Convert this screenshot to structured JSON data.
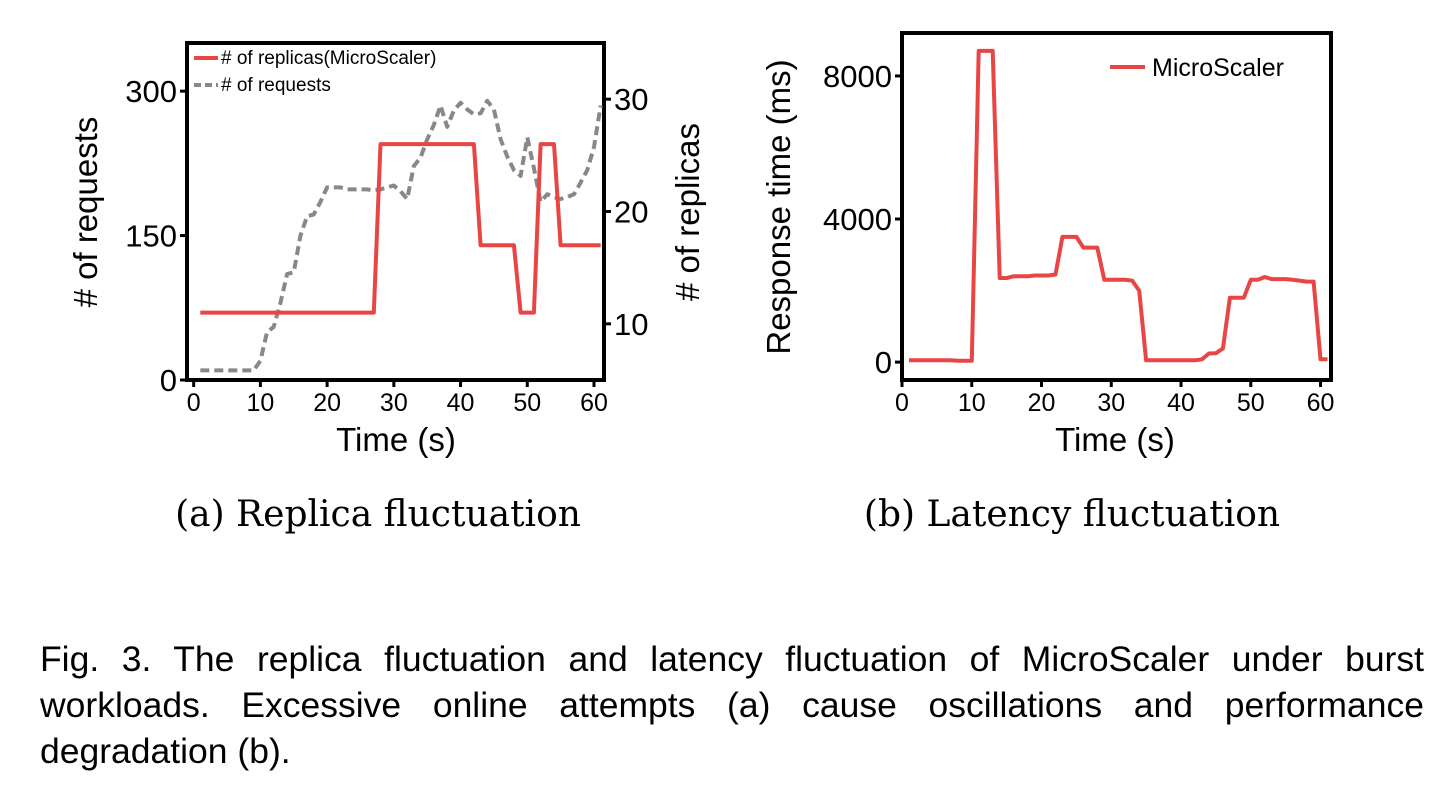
{
  "chart_data": [
    {
      "type": "line",
      "subcaption": "(a) Replica fluctuation",
      "xlabel": "Time (s)",
      "ylabel": "# of requests",
      "ylabel_right": "# of replicas",
      "xlim": [
        -1,
        61.5
      ],
      "ylim": [
        0,
        350
      ],
      "ylim_right": [
        5,
        35
      ],
      "xticks": [
        0,
        10,
        20,
        30,
        40,
        50,
        60
      ],
      "yticks": [
        0,
        150,
        300
      ],
      "yticks_right": [
        10,
        20,
        30
      ],
      "legend_position": "top-left",
      "series": [
        {
          "name": "# of replicas(MicroScaler)",
          "axis": "right",
          "color": "#e84545",
          "style": "solid",
          "x": [
            1,
            27,
            28,
            42,
            43,
            48,
            49,
            51,
            52,
            54,
            55,
            61
          ],
          "y": [
            11,
            11,
            26,
            26,
            17,
            17,
            11,
            11,
            26,
            26,
            17,
            17
          ]
        },
        {
          "name": "# of requests",
          "axis": "left",
          "color": "#888888",
          "style": "dashed",
          "x": [
            1,
            9,
            10,
            11,
            12,
            13,
            14,
            15,
            16,
            17,
            18,
            19,
            20,
            21,
            22,
            23,
            24,
            25,
            26,
            27,
            28,
            29,
            30,
            31,
            32,
            33,
            34,
            35,
            36,
            37,
            38,
            39,
            40,
            41,
            42,
            43,
            44,
            45,
            46,
            47,
            48,
            49,
            50,
            51,
            52,
            53,
            54,
            55,
            56,
            57,
            58,
            59,
            60,
            61
          ],
          "y": [
            10,
            10,
            20,
            50,
            55,
            80,
            110,
            112,
            150,
            170,
            172,
            185,
            200,
            200,
            200,
            198,
            198,
            198,
            198,
            197,
            198,
            200,
            202,
            196,
            188,
            222,
            231,
            250,
            265,
            285,
            263,
            280,
            288,
            281,
            276,
            277,
            290,
            281,
            250,
            232,
            218,
            212,
            252,
            220,
            185,
            193,
            190,
            188,
            190,
            193,
            205,
            218,
            242,
            285
          ]
        }
      ]
    },
    {
      "type": "line",
      "subcaption": "(b) Latency fluctuation",
      "xlabel": "Time (s)",
      "ylabel": "Response time (ms)",
      "xlim": [
        0,
        61.5
      ],
      "ylim": [
        -500,
        9200
      ],
      "xticks": [
        0,
        10,
        20,
        30,
        40,
        50,
        60
      ],
      "yticks": [
        0,
        4000,
        8000
      ],
      "legend_position": "top-right",
      "series": [
        {
          "name": "MicroScaler",
          "color": "#e84545",
          "style": "solid",
          "x": [
            1,
            7,
            8,
            10,
            11,
            12,
            13,
            14,
            15,
            16,
            17,
            18,
            19,
            20,
            21,
            22,
            23,
            24,
            25,
            26,
            27,
            28,
            29,
            30,
            31,
            32,
            33,
            34,
            35,
            36,
            42,
            43,
            44,
            45,
            46,
            47,
            48,
            49,
            50,
            51,
            52,
            53,
            54,
            55,
            56,
            57,
            58,
            59,
            60,
            61
          ],
          "y": [
            50,
            50,
            40,
            40,
            8700,
            8700,
            8700,
            2350,
            2350,
            2400,
            2400,
            2400,
            2420,
            2420,
            2420,
            2450,
            3500,
            3500,
            3500,
            3200,
            3200,
            3200,
            2300,
            2300,
            2300,
            2300,
            2280,
            2000,
            50,
            50,
            50,
            80,
            240,
            250,
            380,
            1800,
            1800,
            1800,
            2300,
            2300,
            2380,
            2320,
            2320,
            2320,
            2300,
            2280,
            2250,
            2250,
            80,
            80
          ]
        }
      ]
    }
  ],
  "caption": "Fig. 3. The replica fluctuation and latency fluctuation of MicroScaler under burst workloads. Excessive online attempts (a) cause oscillations and performance degradation (b)."
}
